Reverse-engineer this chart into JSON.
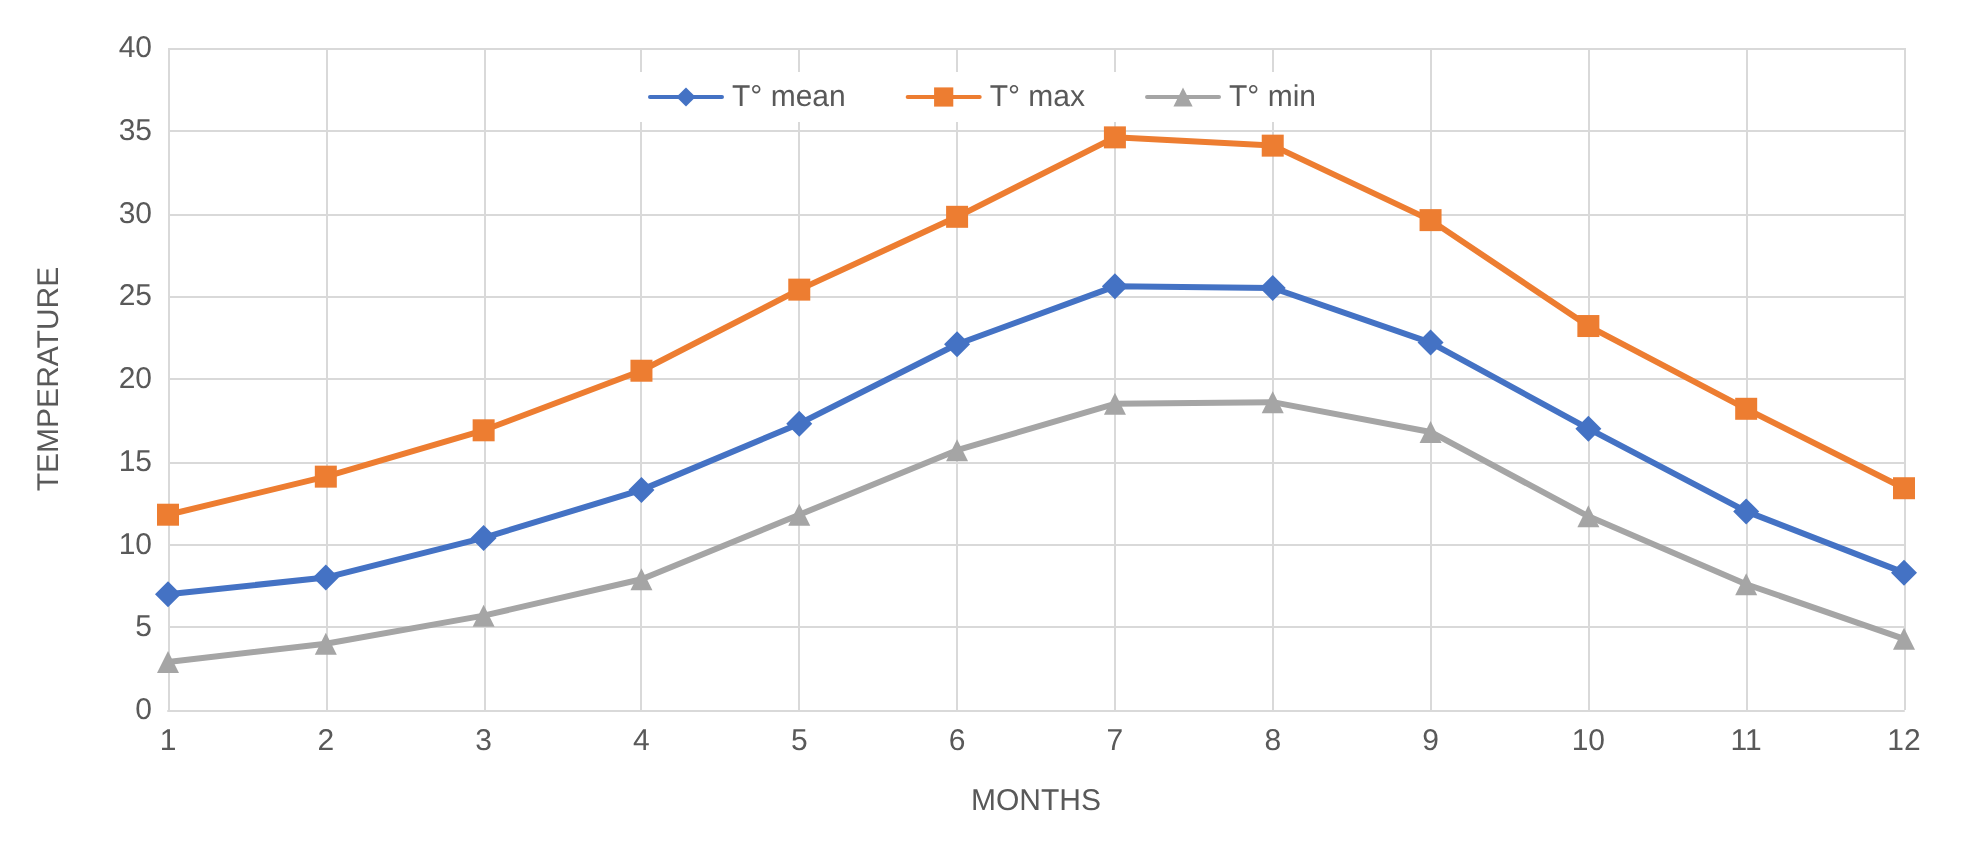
{
  "chart_data": {
    "type": "line",
    "xlabel": "MONTHS",
    "ylabel": "TEMPERATURE",
    "x": [
      1,
      2,
      3,
      4,
      5,
      6,
      7,
      8,
      9,
      10,
      11,
      12
    ],
    "series": [
      {
        "name": "T° mean",
        "color": "#4472c4",
        "marker": "diamond",
        "values": [
          7.0,
          8.0,
          10.4,
          13.3,
          17.3,
          22.1,
          25.6,
          25.5,
          22.2,
          17.0,
          12.0,
          8.3
        ]
      },
      {
        "name": "T° max",
        "color": "#ed7d31",
        "marker": "square",
        "values": [
          11.8,
          14.1,
          16.9,
          20.5,
          25.4,
          29.8,
          34.6,
          34.1,
          29.6,
          23.2,
          18.2,
          13.4
        ]
      },
      {
        "name": "T° min",
        "color": "#a5a5a5",
        "marker": "triangle",
        "values": [
          2.9,
          4.0,
          5.7,
          7.9,
          11.8,
          15.7,
          18.5,
          18.6,
          16.8,
          11.7,
          7.6,
          4.3
        ]
      }
    ],
    "xlim": [
      1,
      12
    ],
    "xticks": [
      1,
      2,
      3,
      4,
      5,
      6,
      7,
      8,
      9,
      10,
      11,
      12
    ],
    "ylim": [
      0,
      40
    ],
    "yticks": [
      0,
      5,
      10,
      15,
      20,
      25,
      30,
      35,
      40
    ],
    "grid": true,
    "legend": "top",
    "line_style": "solid"
  }
}
